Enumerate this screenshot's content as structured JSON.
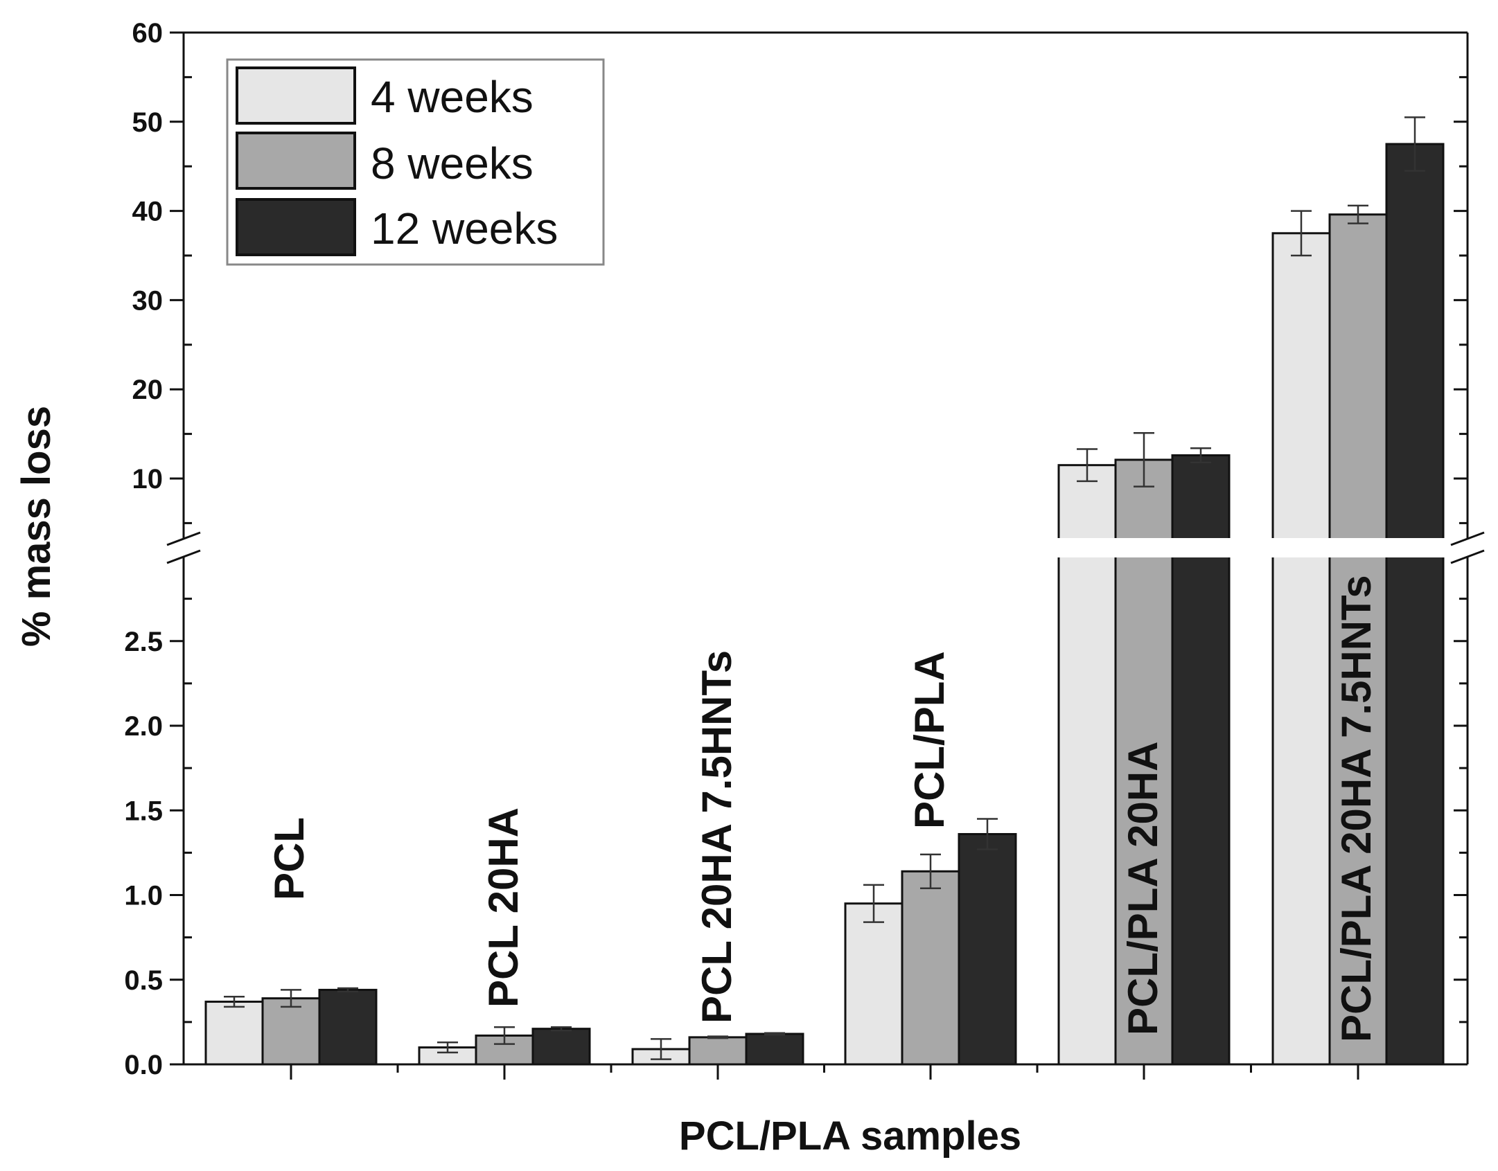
{
  "chart_data": {
    "type": "bar",
    "title": "",
    "xlabel": "PCL/PLA samples",
    "ylabel": "% mass loss",
    "categories": [
      "PCL",
      "PCL 20HA",
      "PCL 20HA 7.5HNTs",
      "PCL/PLA",
      "PCL/PLA 20HA",
      "PCL/PLA 20HA 7.5HNTs"
    ],
    "series": [
      {
        "name": "4 weeks",
        "color": "#e6e6e6",
        "values": [
          0.37,
          0.1,
          0.09,
          0.95,
          11.5,
          37.5
        ],
        "errors": [
          0.03,
          0.03,
          0.06,
          0.11,
          1.8,
          2.5
        ]
      },
      {
        "name": "8 weeks",
        "color": "#a8a8a8",
        "values": [
          0.39,
          0.17,
          0.16,
          1.14,
          12.1,
          39.6
        ],
        "errors": [
          0.05,
          0.05,
          0.005,
          0.1,
          3.0,
          1.0
        ]
      },
      {
        "name": "12 weeks",
        "color": "#2a2a2a",
        "values": [
          0.44,
          0.21,
          0.18,
          1.36,
          12.6,
          47.5
        ],
        "errors": [
          0.01,
          0.01,
          0.005,
          0.09,
          0.8,
          3.0
        ]
      }
    ],
    "y_axis_break": {
      "lower_range": [
        0,
        3.0
      ],
      "upper_range": [
        2.8,
        60
      ],
      "lower_ticks": [
        "0.0",
        "0.5",
        "1.0",
        "1.5",
        "2.0",
        "2.5"
      ],
      "upper_ticks": [
        "10",
        "20",
        "30",
        "40",
        "50",
        "60"
      ]
    },
    "legend": {
      "position": "top-left",
      "entries": [
        "4 weeks",
        "8 weeks",
        "12 weeks"
      ]
    },
    "grid": false
  }
}
